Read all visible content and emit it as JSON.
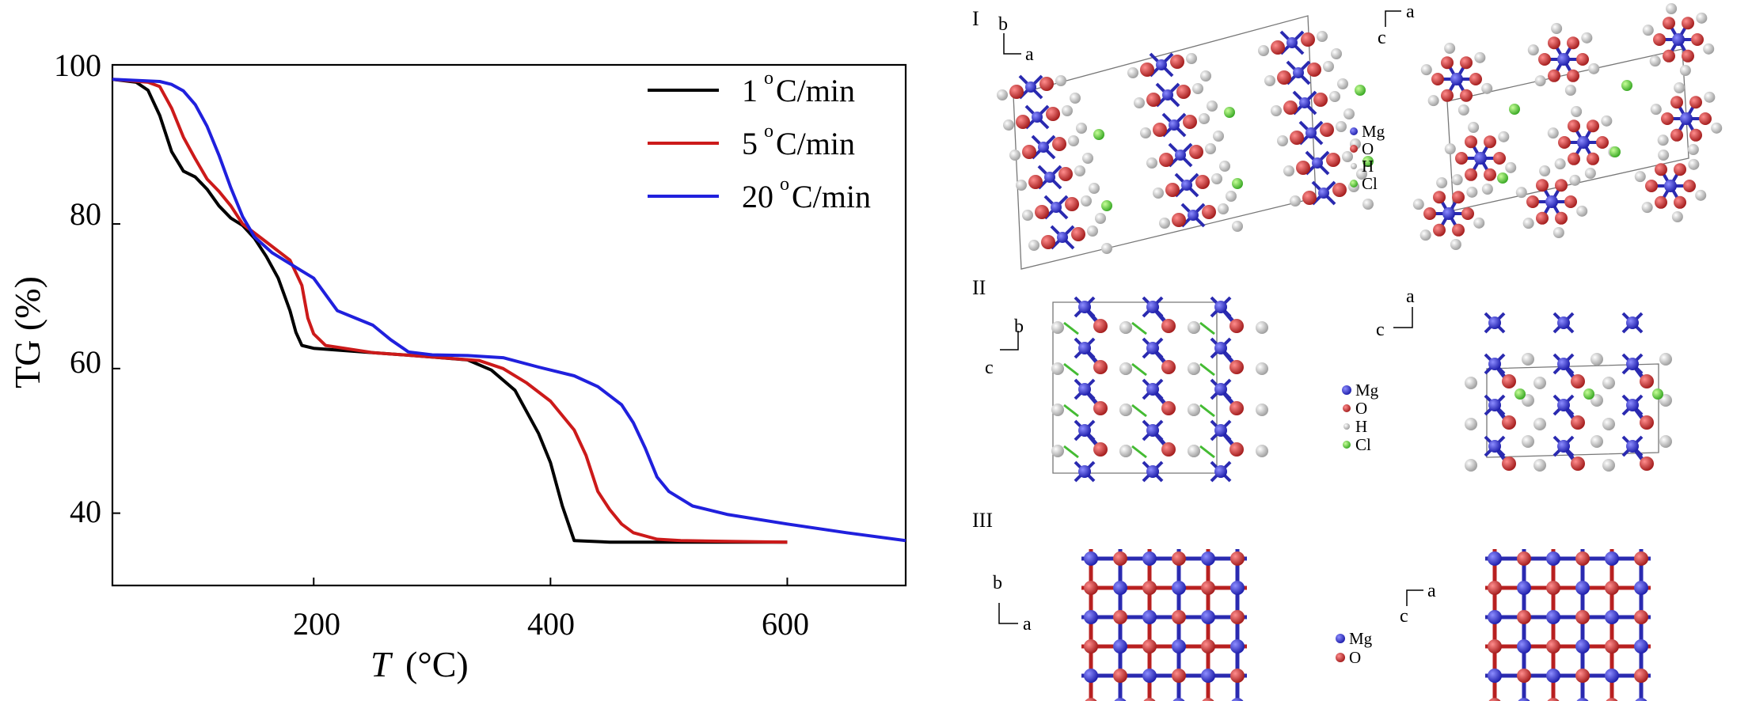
{
  "chart_data": {
    "type": "line",
    "xlabel_main": "T",
    "xlabel_unit": "(°C)",
    "ylabel": "TG (%)",
    "xlim": [
      30,
      700
    ],
    "ylim": [
      30,
      102
    ],
    "x_ticks": [
      200,
      400,
      600
    ],
    "x_tick_labels": [
      "200",
      "400",
      "600"
    ],
    "y_ticks": [
      40,
      60,
      80,
      100
    ],
    "y_tick_labels": [
      "40",
      "60",
      "80",
      "100"
    ],
    "grid": false,
    "legend_position": "top-right",
    "series": [
      {
        "name": "1 °C/min",
        "legend_num": "1",
        "legend_unit": "C/min",
        "color": "#000000",
        "points": [
          [
            30,
            100
          ],
          [
            50,
            99.6
          ],
          [
            60,
            98.5
          ],
          [
            70,
            95
          ],
          [
            80,
            90
          ],
          [
            90,
            87.3
          ],
          [
            100,
            86.5
          ],
          [
            110,
            84.8
          ],
          [
            120,
            82.5
          ],
          [
            130,
            80.8
          ],
          [
            140,
            79.8
          ],
          [
            150,
            78
          ],
          [
            160,
            75.5
          ],
          [
            170,
            72.5
          ],
          [
            180,
            68
          ],
          [
            185,
            65
          ],
          [
            190,
            63.2
          ],
          [
            200,
            62.8
          ],
          [
            250,
            62.2
          ],
          [
            300,
            61.6
          ],
          [
            330,
            61.2
          ],
          [
            350,
            59.8
          ],
          [
            370,
            57
          ],
          [
            390,
            51
          ],
          [
            400,
            47
          ],
          [
            410,
            41
          ],
          [
            420,
            36.2
          ],
          [
            450,
            36
          ],
          [
            500,
            36
          ],
          [
            550,
            36
          ],
          [
            600,
            36
          ]
        ]
      },
      {
        "name": "5 °C/min",
        "legend_num": "5",
        "legend_unit": "C/min",
        "color": "#cc1a1a",
        "points": [
          [
            30,
            100
          ],
          [
            60,
            99.6
          ],
          [
            70,
            99
          ],
          [
            80,
            96
          ],
          [
            90,
            92
          ],
          [
            100,
            89
          ],
          [
            110,
            86.2
          ],
          [
            120,
            84.5
          ],
          [
            130,
            82.5
          ],
          [
            140,
            80
          ],
          [
            160,
            77.5
          ],
          [
            180,
            75
          ],
          [
            190,
            71.5
          ],
          [
            195,
            67
          ],
          [
            200,
            64.8
          ],
          [
            210,
            63.2
          ],
          [
            250,
            62.2
          ],
          [
            300,
            61.6
          ],
          [
            340,
            61.1
          ],
          [
            360,
            60
          ],
          [
            380,
            58
          ],
          [
            400,
            55.5
          ],
          [
            420,
            51.5
          ],
          [
            430,
            48
          ],
          [
            440,
            43
          ],
          [
            450,
            40.5
          ],
          [
            460,
            38.5
          ],
          [
            470,
            37.3
          ],
          [
            490,
            36.4
          ],
          [
            510,
            36.2
          ],
          [
            550,
            36.1
          ],
          [
            600,
            36
          ]
        ]
      },
      {
        "name": "20 °C/min",
        "legend_num": "20",
        "legend_unit": "C/min",
        "color": "#2020dd",
        "points": [
          [
            30,
            100
          ],
          [
            70,
            99.7
          ],
          [
            80,
            99.3
          ],
          [
            90,
            98.4
          ],
          [
            100,
            96.5
          ],
          [
            110,
            93.5
          ],
          [
            120,
            89.5
          ],
          [
            130,
            85
          ],
          [
            140,
            81
          ],
          [
            150,
            78.2
          ],
          [
            165,
            76
          ],
          [
            180,
            74.5
          ],
          [
            200,
            72.5
          ],
          [
            220,
            68
          ],
          [
            235,
            67
          ],
          [
            250,
            66
          ],
          [
            265,
            64
          ],
          [
            280,
            62.3
          ],
          [
            300,
            61.9
          ],
          [
            330,
            61.8
          ],
          [
            360,
            61.5
          ],
          [
            390,
            60.2
          ],
          [
            420,
            59
          ],
          [
            440,
            57.5
          ],
          [
            460,
            55
          ],
          [
            470,
            52.5
          ],
          [
            480,
            49
          ],
          [
            490,
            45
          ],
          [
            500,
            43
          ],
          [
            520,
            41
          ],
          [
            550,
            39.8
          ],
          [
            600,
            38.5
          ],
          [
            650,
            37.3
          ],
          [
            700,
            36.2
          ]
        ]
      }
    ]
  },
  "panels": {
    "I": {
      "label": "I",
      "key": [
        "Mg",
        "O",
        "H",
        "Cl"
      ]
    },
    "II": {
      "label": "II",
      "key": [
        "Mg",
        "O",
        "H",
        "Cl"
      ]
    },
    "III": {
      "label": "III",
      "key": [
        "Mg",
        "O"
      ]
    }
  },
  "axis_letters": {
    "a": "a",
    "b": "b",
    "c": "c"
  },
  "atom_colors": {
    "Mg": "#1f1fb8",
    "O": "#b81f1f",
    "H": "#e6e6e6",
    "Cl": "#55cc33"
  }
}
